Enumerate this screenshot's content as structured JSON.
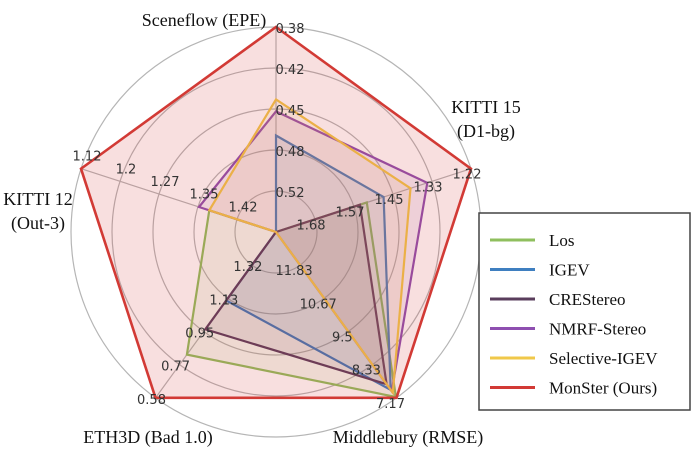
{
  "chart_data": {
    "type": "radar",
    "axes": [
      {
        "label": [
          "Sceneflow (EPE)"
        ],
        "ticks": [
          "0.38",
          "0.42",
          "0.45",
          "0.48",
          "0.52"
        ],
        "range": [
          0.55,
          0.38
        ]
      },
      {
        "label": [
          "KITTI 15",
          "(D1-bg)"
        ],
        "ticks": [
          "1.22",
          "1.33",
          "1.45",
          "1.57",
          "1.68"
        ],
        "range": [
          1.8,
          1.22
        ]
      },
      {
        "label": [
          "Middlebury (RMSE)"
        ],
        "ticks": [
          "7.17",
          "8.33",
          "9.5",
          "10.67",
          "11.83"
        ],
        "range": [
          13.0,
          7.17
        ]
      },
      {
        "label": [
          "ETH3D (Bad 1.0)"
        ],
        "ticks": [
          "0.58",
          "0.77",
          "0.95",
          "1.13",
          "1.32"
        ],
        "range": [
          1.5,
          0.58
        ]
      },
      {
        "label": [
          "KITTI 12",
          "(Out-3)"
        ],
        "ticks": [
          "1.12",
          "1.2",
          "1.27",
          "1.35",
          "1.42"
        ],
        "range": [
          1.5,
          1.12
        ]
      }
    ],
    "series": [
      {
        "name": "Los",
        "color": "#8fbf5e",
        "values": [
          0.55,
          1.53,
          7.2,
          0.82,
          1.37
        ]
      },
      {
        "name": "IGEV",
        "color": "#3f7fc0",
        "values": [
          0.47,
          1.48,
          7.45,
          1.12,
          1.5
        ]
      },
      {
        "name": "CREStereo",
        "color": "#5a3d5c",
        "values": [
          0.55,
          1.55,
          7.65,
          0.96,
          1.5
        ]
      },
      {
        "name": "NMRF-Stereo",
        "color": "#8e4fb0",
        "values": [
          0.45,
          1.35,
          7.4,
          1.5,
          1.35
        ]
      },
      {
        "name": "Selective-IGEV",
        "color": "#f0c84a",
        "values": [
          0.44,
          1.4,
          7.35,
          1.5,
          1.37
        ]
      },
      {
        "name": "MonSter (Ours)",
        "color": "#d23a35",
        "values": [
          0.38,
          1.22,
          7.17,
          0.58,
          1.12
        ]
      }
    ],
    "grid": true,
    "legend_position": "right"
  }
}
